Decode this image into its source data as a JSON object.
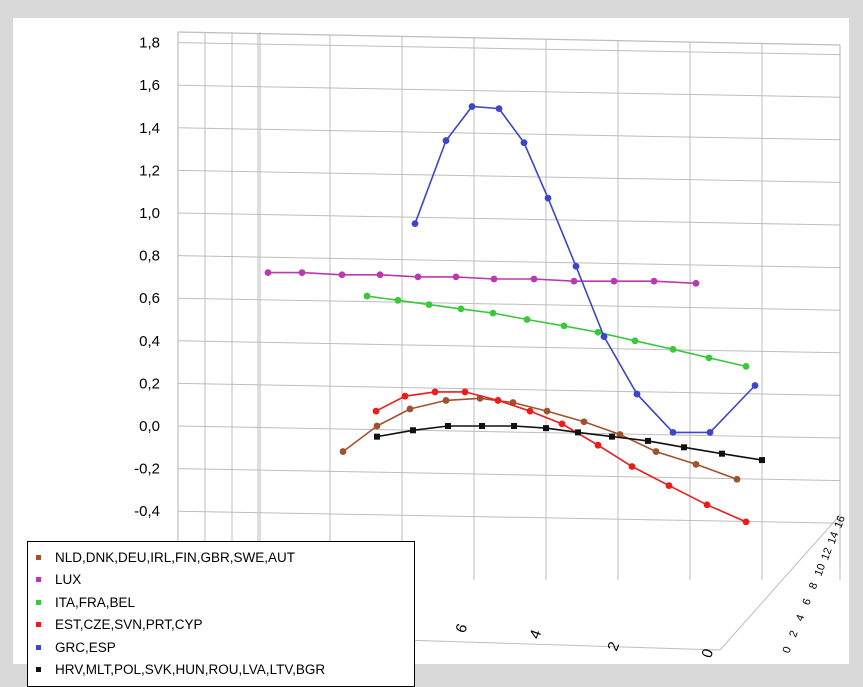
{
  "chart_data": {
    "type": "line",
    "yticks": [
      "1,8",
      "1,6",
      "1,4",
      "1,2",
      "1,0",
      "0,8",
      "0,6",
      "0,4",
      "0,2",
      "0,0",
      "-0,2",
      "-0,4"
    ],
    "ylim": [
      -0.4,
      1.8
    ],
    "depth_ticks_front": [
      "8",
      "6",
      "4",
      "2",
      "0"
    ],
    "depth_ticks_right": [
      "16",
      "14",
      "12",
      "10",
      "8",
      "6",
      "4",
      "2",
      "0"
    ],
    "grid": true,
    "legend_position": "bottom-left",
    "series": [
      {
        "name": "NLD,DNK,DEU,IRL,FIN,GBR,SWE,AUT",
        "color": "#a0522d",
        "values": [
          -0.12,
          0.0,
          0.08,
          0.12,
          0.13,
          0.11,
          0.07,
          0.02,
          -0.04,
          -0.12,
          -0.18,
          -0.25
        ]
      },
      {
        "name": "LUX",
        "color": "#b93ab0",
        "values": [
          0.72,
          0.72,
          0.71,
          0.71,
          0.7,
          0.7,
          0.69,
          0.69,
          0.68,
          0.68,
          0.68,
          0.67
        ]
      },
      {
        "name": "ITA,FRA,BEL",
        "color": "#3cc83c",
        "values": [
          0.61,
          0.59,
          0.57,
          0.55,
          0.53,
          0.5,
          0.47,
          0.44,
          0.4,
          0.36,
          0.32,
          0.28
        ]
      },
      {
        "name": "EST,CZE,SVN,PRT,CYP",
        "color": "#ee1b1b",
        "values": [
          0.07,
          0.14,
          0.16,
          0.16,
          0.12,
          0.07,
          0.01,
          -0.09,
          -0.19,
          -0.28,
          -0.37,
          -0.45
        ]
      },
      {
        "name": "GRC,ESP",
        "color": "#3c46c8",
        "values": [
          0.95,
          1.34,
          1.5,
          1.49,
          1.33,
          1.07,
          0.75,
          0.42,
          0.15,
          -0.03,
          -0.03,
          0.19
        ]
      },
      {
        "name": "HRV,MLT,POL,SVK,HUN,ROU,LVA,LTV,BGR",
        "color": "#111111",
        "values": [
          -0.05,
          -0.02,
          0.0,
          0.0,
          0.0,
          -0.01,
          -0.03,
          -0.05,
          -0.07,
          -0.1,
          -0.13,
          -0.16
        ]
      }
    ]
  }
}
